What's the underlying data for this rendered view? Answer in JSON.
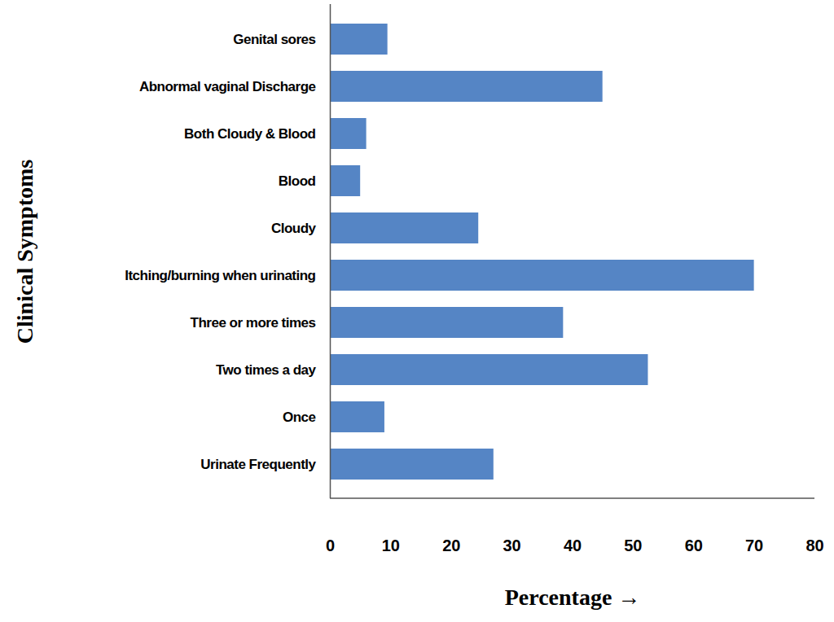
{
  "chart_data": {
    "type": "bar",
    "orientation": "horizontal",
    "x_label": "Percentage",
    "y_label": "Clinical Symptoms",
    "categories": [
      "Genital sores",
      "Abnormal vaginal Discharge",
      "Both Cloudy & Blood",
      "Blood",
      "Cloudy",
      "Itching/burning when urinating",
      "Three or more times",
      "Two times a day",
      "Once",
      "Urinate Frequently"
    ],
    "values": [
      9.5,
      45,
      6,
      5,
      24.5,
      70,
      38.5,
      52.5,
      9,
      27
    ],
    "color": "#5585c5",
    "xlim": [
      0,
      80
    ],
    "xticks": [
      0,
      10,
      20,
      30,
      40,
      50,
      60,
      70,
      80
    ],
    "grid": false
  }
}
